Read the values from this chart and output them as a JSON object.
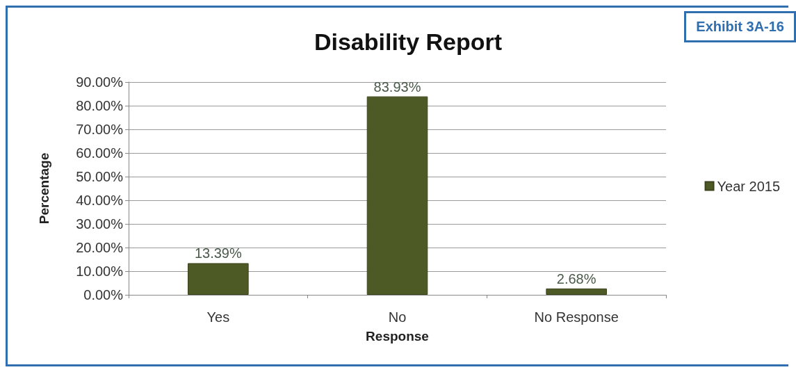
{
  "chart_data": {
    "type": "bar",
    "title": "Disability Report",
    "xlabel": "Response",
    "ylabel": "Percentage",
    "annotations": [
      "Exhibit 3A-16"
    ],
    "categories": [
      "Yes",
      "No",
      "No Response"
    ],
    "series": [
      {
        "name": "Year 2015",
        "color": "#4e5a26",
        "values": [
          13.39,
          83.93,
          2.68
        ],
        "value_labels": [
          "13.39%",
          "83.93%",
          "2.68%"
        ]
      }
    ],
    "ylim": [
      0,
      90
    ],
    "yticks": [
      {
        "value": 0,
        "label": "0.00%"
      },
      {
        "value": 10,
        "label": "10.00%"
      },
      {
        "value": 20,
        "label": "20.00%"
      },
      {
        "value": 30,
        "label": "30.00%"
      },
      {
        "value": 40,
        "label": "40.00%"
      },
      {
        "value": 50,
        "label": "50.00%"
      },
      {
        "value": 60,
        "label": "60.00%"
      },
      {
        "value": 70,
        "label": "70.00%"
      },
      {
        "value": 80,
        "label": "80.00%"
      },
      {
        "value": 90,
        "label": "90.00%"
      }
    ],
    "grid": "y",
    "legend": "right"
  }
}
